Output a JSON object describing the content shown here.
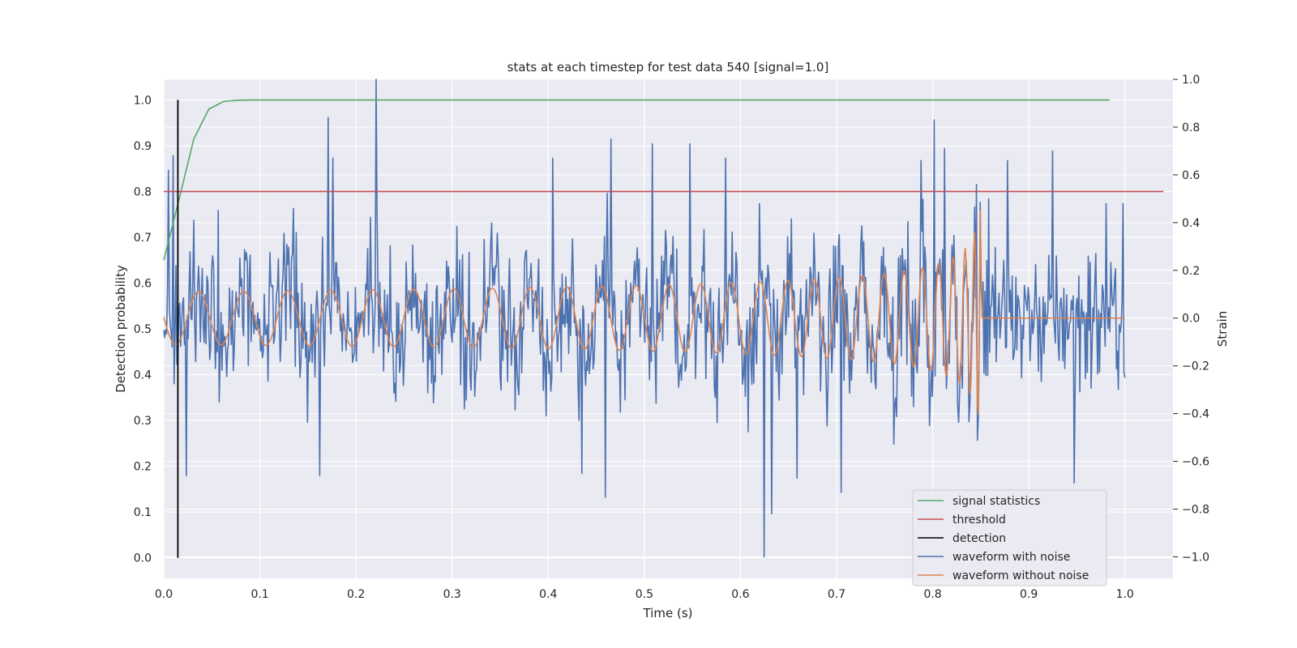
{
  "chart_data": {
    "type": "line",
    "title": "stats at each timestep for test data 540 [signal=1.0]",
    "xlabel": "Time (s)",
    "ylabel": "Detection probability",
    "y2label": "Strain",
    "xlim": [
      0.0,
      1.05
    ],
    "ylim": [
      -0.045,
      1.045
    ],
    "y2lim": [
      -1.09,
      1.0
    ],
    "x_ticks": [
      "0.0",
      "0.1",
      "0.2",
      "0.3",
      "0.4",
      "0.5",
      "0.6",
      "0.7",
      "0.8",
      "0.9",
      "1.0"
    ],
    "y_ticks": [
      "0.0",
      "0.1",
      "0.2",
      "0.3",
      "0.4",
      "0.5",
      "0.6",
      "0.7",
      "0.8",
      "0.9",
      "1.0"
    ],
    "y2_ticks": [
      "−1.0",
      "−0.8",
      "−0.6",
      "−0.4",
      "−0.2",
      "0.0",
      "0.2",
      "0.4",
      "0.6",
      "0.8",
      "1.0"
    ],
    "grid": true,
    "legend_position": "lower-right",
    "series": [
      {
        "name": "signal statistics",
        "axis": "left",
        "color": "#55a868",
        "x": [
          0.0,
          0.0156,
          0.0313,
          0.0469,
          0.0625,
          0.0781,
          0.0938,
          0.2,
          0.4,
          0.6,
          0.8,
          0.984
        ],
        "y": [
          0.65,
          0.78,
          0.915,
          0.98,
          0.997,
          0.9995,
          1.0,
          1.0,
          1.0,
          1.0,
          1.0,
          1.0
        ]
      },
      {
        "name": "threshold",
        "axis": "left",
        "color": "#c44e52",
        "x": [
          0.0,
          1.04
        ],
        "y": [
          0.8,
          0.8
        ]
      },
      {
        "name": "detection",
        "axis": "left",
        "color": "#000000",
        "x": [
          0.0147,
          0.0147
        ],
        "y": [
          0.0,
          1.0
        ]
      },
      {
        "name": "waveform with noise",
        "axis": "right",
        "color": "#4c72b0",
        "x_range": [
          0.0,
          1.0
        ],
        "count": 1024,
        "markers": [
          [
            0.0,
            -0.05
          ],
          [
            0.005,
            0.62
          ],
          [
            0.01,
            0.68
          ],
          [
            0.0127,
            0.22
          ],
          [
            0.0235,
            -0.66
          ],
          [
            0.0313,
            0.41
          ],
          [
            0.0564,
            0.45
          ],
          [
            0.171,
            0.84
          ],
          [
            0.176,
            0.67
          ],
          [
            0.221,
            1.0
          ],
          [
            0.222,
            0.45
          ],
          [
            0.162,
            -0.66
          ],
          [
            0.405,
            0.67
          ],
          [
            0.465,
            0.75
          ],
          [
            0.508,
            0.73
          ],
          [
            0.547,
            0.73
          ],
          [
            0.585,
            0.67
          ],
          [
            0.435,
            -0.65
          ],
          [
            0.459,
            -0.75
          ],
          [
            0.62,
            0.48
          ],
          [
            0.625,
            -1.0
          ],
          [
            0.632,
            -0.82
          ],
          [
            0.659,
            -0.67
          ],
          [
            0.705,
            -0.73
          ],
          [
            0.788,
            0.66
          ],
          [
            0.802,
            0.83
          ],
          [
            0.812,
            0.71
          ],
          [
            0.846,
            0.56
          ],
          [
            0.858,
            0.5
          ],
          [
            0.878,
            0.66
          ],
          [
            0.925,
            0.7
          ],
          [
            0.947,
            -0.69
          ],
          [
            0.98,
            0.48
          ],
          [
            0.998,
            0.48
          ],
          [
            1.0,
            -0.25
          ]
        ]
      },
      {
        "name": "waveform without noise",
        "axis": "right",
        "color": "#dd8452",
        "x_range": [
          0.0,
          1.0
        ],
        "count": 1024,
        "merger_time": 0.851
      }
    ]
  }
}
